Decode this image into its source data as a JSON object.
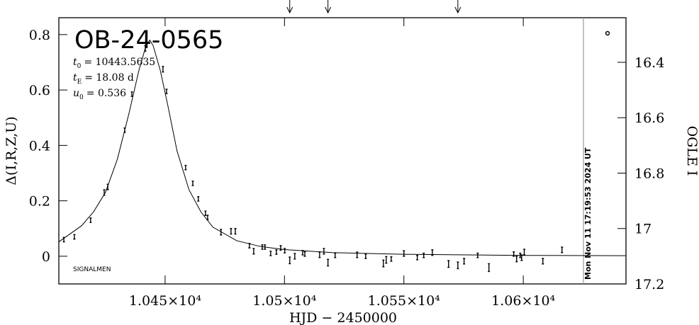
{
  "chart_data": {
    "type": "scatter",
    "title": "OB-24-0565",
    "params": [
      {
        "symbol": "t",
        "sub": "0",
        "value": "= 10443.5635"
      },
      {
        "symbol": "t",
        "sub": "E",
        "value": "= 18.08 d"
      },
      {
        "symbol": "u",
        "sub": "0",
        "value": "= 0.536"
      }
    ],
    "annotation": "SIGNALMEN",
    "timestamp": "Mon Nov 11 17:19:53 2024 UT",
    "now_line": 10625.2,
    "arrows": [
      10502.2,
      10518.2,
      10572.6
    ],
    "x_label": "HJD − 2450000",
    "y_label": "Δ(I,R,Z,U)",
    "y2_label": "OGLE I",
    "color": "#000000",
    "x": [
      10407.6,
      10412.0,
      10418.8,
      10424.5,
      10426.0,
      10433.1,
      10436.1,
      10441.7,
      10449.1,
      10450.6,
      10458.6,
      10461.6,
      10463.9,
      10466.9,
      10467.8,
      10473.4,
      10477.6,
      10479.4,
      10485.3,
      10487.1,
      10490.7,
      10491.8,
      10494.2,
      10496.6,
      10498.4,
      10500.1,
      10502.2,
      10504.3,
      10507.6,
      10508.5,
      10514.7,
      10516.5,
      10518.2,
      10521.2,
      10530.4,
      10534.0,
      10541.4,
      10542.6,
      10544.7,
      10550.0,
      10555.6,
      10558.3,
      10561.9,
      10568.7,
      10572.6,
      10575.2,
      10580.9,
      10585.6,
      10596.0,
      10597.2,
      10598.7,
      10599.3,
      10600.4,
      10608.2,
      10616.2
    ],
    "values": [
      0.06,
      0.07,
      0.13,
      0.23,
      0.25,
      0.455,
      0.585,
      0.75,
      0.675,
      0.595,
      0.32,
      0.263,
      0.207,
      0.155,
      0.14,
      0.087,
      0.09,
      0.09,
      0.038,
      0.018,
      0.033,
      0.033,
      0.01,
      0.015,
      0.03,
      0.02,
      -0.015,
      0,
      0.013,
      0.008,
      0.005,
      0.018,
      -0.023,
      0.003,
      0.005,
      0,
      -0.026,
      -0.013,
      -0.01,
      0.01,
      -0.005,
      0.003,
      0.013,
      -0.028,
      -0.033,
      -0.018,
      0.003,
      -0.041,
      0.008,
      -0.01,
      0.003,
      -0.005,
      0.015,
      -0.018,
      0.023
    ],
    "errors": [
      0.008,
      0.008,
      0.008,
      0.01,
      0.01,
      0.008,
      0.008,
      0.01,
      0.01,
      0.008,
      0.008,
      0.008,
      0.008,
      0.008,
      0.008,
      0.01,
      0.01,
      0.01,
      0.008,
      0.01,
      0.008,
      0.008,
      0.008,
      0.008,
      0.008,
      0.008,
      0.012,
      0.01,
      0.008,
      0.008,
      0.01,
      0.01,
      0.012,
      0.008,
      0.01,
      0.008,
      0.012,
      0.012,
      0.008,
      0.01,
      0.008,
      0.008,
      0.01,
      0.012,
      0.012,
      0.01,
      0.008,
      0.014,
      0.008,
      0.01,
      0.008,
      0.01,
      0.01,
      0.01,
      0.01
    ],
    "model": {
      "x": [
        10405.5,
        10415,
        10420,
        10425,
        10430,
        10435,
        10439,
        10442,
        10443.6,
        10445,
        10448,
        10451,
        10455,
        10460,
        10465,
        10470,
        10480,
        10490,
        10500,
        10520,
        10550,
        10600,
        10643
      ],
      "values": [
        0.052,
        0.11,
        0.16,
        0.23,
        0.35,
        0.52,
        0.67,
        0.76,
        0.78,
        0.76,
        0.67,
        0.55,
        0.38,
        0.24,
        0.16,
        0.105,
        0.056,
        0.035,
        0.024,
        0.013,
        0.007,
        0.003,
        0.002
      ]
    },
    "xlim": [
      10405.5,
      10643
    ],
    "ylim": [
      -0.1,
      0.861
    ],
    "y2lim": [
      17.2,
      16.239
    ],
    "xticks": [
      {
        "value": 10450,
        "label": "1.045×10⁴"
      },
      {
        "value": 10500,
        "label": "1.05×10⁴"
      },
      {
        "value": 10550,
        "label": "1.055×10⁴"
      },
      {
        "value": 10600,
        "label": "1.06×10⁴"
      }
    ],
    "yticks": [
      0,
      0.2,
      0.4,
      0.6,
      0.8
    ],
    "y2ticks": [
      16.4,
      16.6,
      16.8,
      17,
      17.2
    ]
  }
}
